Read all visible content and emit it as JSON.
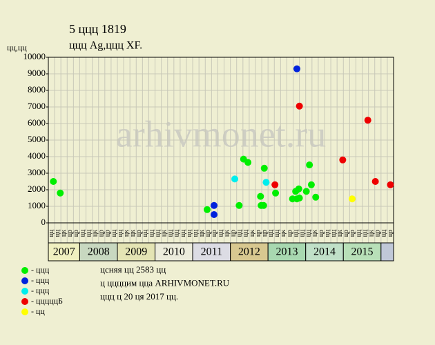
{
  "chart_data": {
    "type": "scatter",
    "title": "5 ццц 1819",
    "subtitle": "ццц Ag,ццц XF.",
    "y_label": "цц,цц",
    "watermark": "arhivmonet.ru",
    "xlim": [
      0,
      55
    ],
    "ylim": [
      0,
      10000
    ],
    "yticks": [
      0,
      1000,
      2000,
      3000,
      4000,
      5000,
      6000,
      7000,
      8000,
      9000,
      10000
    ],
    "grid": true,
    "columns": [
      "цц",
      "цц",
      "цк",
      "цр",
      "цр",
      "цц",
      "цц",
      "цк",
      "цр",
      "цр",
      "цц",
      "цц",
      "цк",
      "цк",
      "цр",
      "цц",
      "цц",
      "цц",
      "цк",
      "цц",
      "цц",
      "цц",
      "цц",
      "цц",
      "цк",
      "цр",
      "цр",
      "цц",
      "цк",
      "цр",
      "цц",
      "цц",
      "цк",
      "цр",
      "цр",
      "цц",
      "цц",
      "цк",
      "цр",
      "цц",
      "цц",
      "цц",
      "цк",
      "цр",
      "цц",
      "цц",
      "цк",
      "цр",
      "цр",
      "цц",
      "цц",
      "цк",
      "цр",
      "цц",
      "цр"
    ],
    "years": [
      {
        "label": "2007",
        "columns": 5,
        "color": "#f0f0c0"
      },
      {
        "label": "2008",
        "columns": 6,
        "color": "#c8d8c0"
      },
      {
        "label": "2009",
        "columns": 6,
        "color": "#e4e4b4"
      },
      {
        "label": "2010",
        "columns": 6,
        "color": "#ececdc"
      },
      {
        "label": "2011",
        "columns": 6,
        "color": "#dcdce4"
      },
      {
        "label": "2012",
        "columns": 6,
        "color": "#d8c890"
      },
      {
        "label": "2013",
        "columns": 6,
        "color": "#a8d8b0"
      },
      {
        "label": "2014",
        "columns": 6,
        "color": "#c0e0c8"
      },
      {
        "label": "2015",
        "columns": 6,
        "color": "#b8e0b8"
      },
      {
        "label": "",
        "columns": 2,
        "color": "#c0c8d8"
      }
    ],
    "series": [
      {
        "name": "- ццц",
        "color": "#00ee00",
        "x": [
          0.8,
          1.9,
          25.3,
          30.4,
          31.1,
          31.8,
          33.8,
          33.9,
          34.3,
          34.4,
          36.2,
          38.9,
          39.4,
          39.6,
          39.9,
          40.0,
          41.1,
          41.6,
          41.9,
          42.6
        ],
        "values": [
          2500,
          1800,
          800,
          1050,
          3850,
          3650,
          1600,
          1050,
          1050,
          3300,
          1800,
          1450,
          1900,
          1450,
          2050,
          1500,
          1900,
          3500,
          2300,
          1550
        ]
      },
      {
        "name": "- ццц",
        "color": "#0022dd",
        "x": [
          26.4,
          26.4,
          39.6
        ],
        "values": [
          1050,
          500,
          9300
        ]
      },
      {
        "name": "- ццц",
        "color": "#00eeee",
        "x": [
          29.7,
          34.7
        ],
        "values": [
          2650,
          2450
        ]
      },
      {
        "name": "- цццццБ",
        "color": "#ee0000",
        "x": [
          36.1,
          40.0,
          46.9,
          50.9,
          52.1,
          54.5
        ],
        "values": [
          2300,
          7050,
          3800,
          6200,
          2500,
          2300
        ]
      },
      {
        "name": "- цц",
        "color": "#ffff00",
        "x": [
          48.4
        ],
        "values": [
          1450
        ]
      }
    ],
    "notes": [
      "цсняя цц 2583 цц",
      "ц ццццим цца ARHIVMONET.RU",
      "ццц ц 20 ця 2017 цц."
    ]
  }
}
